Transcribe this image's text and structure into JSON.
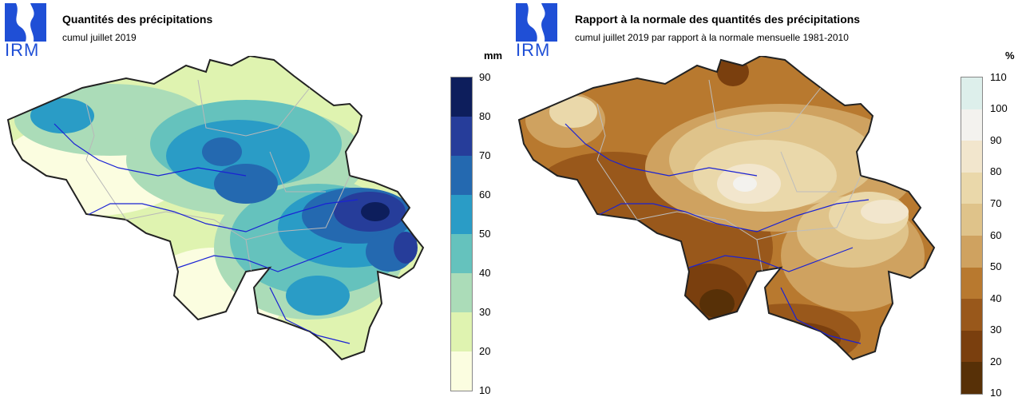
{
  "left": {
    "logo_text": "IRM",
    "title": "Quantités des précipitations",
    "subtitle": "cumul juillet 2019",
    "unit": "mm",
    "ticks": [
      "90",
      "80",
      "70",
      "60",
      "50",
      "40",
      "30",
      "20",
      "10"
    ],
    "colors": [
      "#0d1e5c",
      "#263d9a",
      "#2469b0",
      "#2a9cc6",
      "#65c2bd",
      "#abdcb8",
      "#dff3b0",
      "#fbfde0"
    ]
  },
  "right": {
    "logo_text": "IRM",
    "title": "Rapport à la normale des quantités des précipitations",
    "subtitle": "cumul juillet 2019 par rapport à la normale mensuelle 1981-2010",
    "unit": "%",
    "ticks": [
      "110",
      "100",
      "90",
      "80",
      "70",
      "60",
      "50",
      "40",
      "30",
      "20",
      "10"
    ],
    "colors": [
      "#ddefeb",
      "#f3f2ee",
      "#f2e6cd",
      "#ead8aa",
      "#dfc38a",
      "#cfa260",
      "#b8792f",
      "#99581b",
      "#7a3f0e",
      "#573007"
    ]
  }
}
